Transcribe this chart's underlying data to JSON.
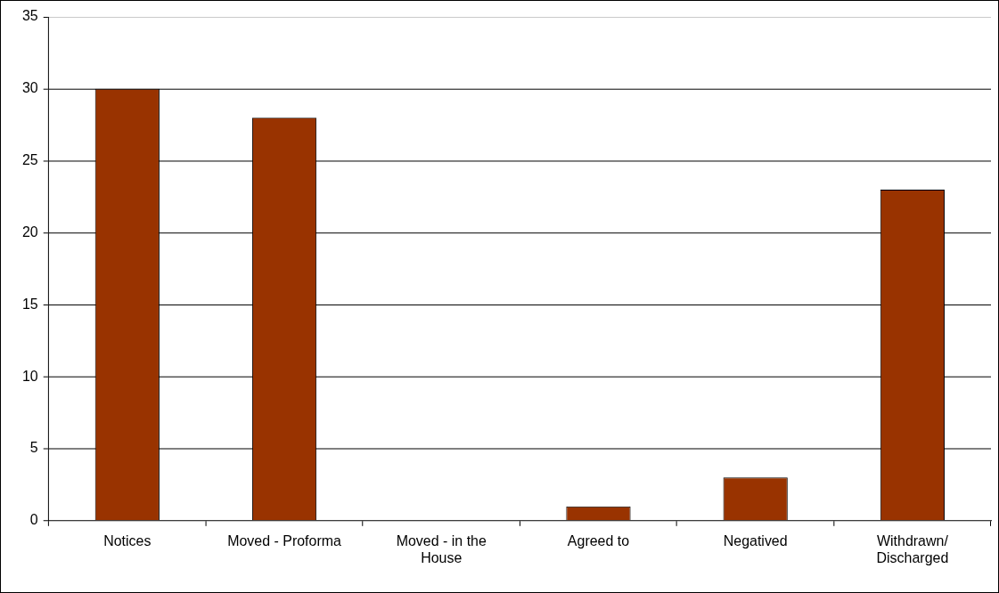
{
  "chart_data": {
    "type": "bar",
    "categories": [
      "Notices",
      "Moved - Proforma",
      "Moved - in the House",
      "Agreed to",
      "Negatived",
      "Withdrawn/ Discharged"
    ],
    "values": [
      30,
      28,
      0,
      1,
      3,
      23
    ],
    "color": "#993300",
    "ylim": [
      0,
      35
    ],
    "yticks": [
      0,
      5,
      10,
      15,
      20,
      25,
      30,
      35
    ],
    "grid": "y",
    "legend": false
  }
}
